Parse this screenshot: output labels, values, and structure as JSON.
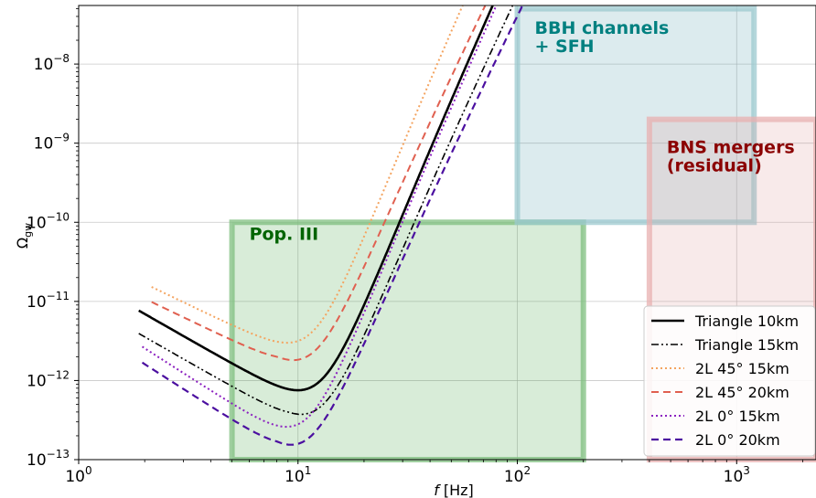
{
  "chart_data": {
    "type": "line",
    "title": "",
    "xlabel_symbol": "f",
    "xlabel_unit": "[Hz]",
    "ylabel_main": "Ω",
    "ylabel_sub": "gw",
    "xscale": "log",
    "yscale": "log",
    "xlim": [
      1,
      2300
    ],
    "ylim": [
      1e-13,
      5.5e-08
    ],
    "grid": true,
    "legend_placement": "lower-right",
    "x_ticks": [
      {
        "value": 1,
        "base": "10",
        "exp": "0"
      },
      {
        "value": 10,
        "base": "10",
        "exp": "1"
      },
      {
        "value": 100,
        "base": "10",
        "exp": "2"
      },
      {
        "value": 1000,
        "base": "10",
        "exp": "3"
      }
    ],
    "y_ticks": [
      {
        "value": 1e-13,
        "base": "10",
        "exp": "−13"
      },
      {
        "value": 1e-12,
        "base": "10",
        "exp": "−12"
      },
      {
        "value": 1e-11,
        "base": "10",
        "exp": "−11"
      },
      {
        "value": 1e-10,
        "base": "10",
        "exp": "−10"
      },
      {
        "value": 1e-09,
        "base": "10",
        "exp": "−9"
      },
      {
        "value": 1e-08,
        "base": "10",
        "exp": "−8"
      }
    ],
    "regions": [
      {
        "label_lines": [
          "Pop. III"
        ],
        "x0": 5,
        "x1": 200,
        "y0": 1e-13,
        "y1": 1e-10,
        "fill": "#4ea84e",
        "edge": "#7fbf7f",
        "text_color": "#006400",
        "label_x": 6,
        "label_y": 6e-11
      },
      {
        "label_lines": [
          "BBH channels",
          "+ SFH"
        ],
        "x0": 100,
        "x1": 1200,
        "y0": 1e-10,
        "y1": 5e-08,
        "fill": "#5fa3b0",
        "edge": "#9cc9cf",
        "text_color": "#008080",
        "label_x": 120,
        "label_y": 2.4e-08
      },
      {
        "label_lines": [
          "BNS mergers",
          "(residual)"
        ],
        "x0": 400,
        "x1": 2300,
        "y0": 1e-13,
        "y1": 2e-09,
        "fill": "#e0a0a0",
        "edge": "#e8b0b0",
        "text_color": "#8b0000",
        "label_x": 480,
        "label_y": 7.5e-10
      }
    ],
    "series": [
      {
        "name": "Triangle 10km",
        "color": "#000000",
        "dash": "",
        "width": 2.6,
        "xmin": 1.88,
        "xmax": 2300,
        "f0": 9,
        "omin": 7.8e-13,
        "a": 1.6,
        "b": 6,
        "tA": 0,
        "tB": 0
      },
      {
        "name": "Triangle 15km",
        "color": "#000000",
        "dash": "8,3,2,3,2,3",
        "width": 1.6,
        "xmin": 1.88,
        "xmax": 2300,
        "f0": 9,
        "omin": 4e-13,
        "a": 1.6,
        "b": 6,
        "tA": 0.45,
        "tB": 0
      },
      {
        "name": "2L 45° 15km",
        "color": "#f4a460",
        "dash": "2,3",
        "width": 2,
        "xmin": 2.15,
        "xmax": 2300,
        "f0": 8,
        "omin": 3.1e-12,
        "a": 1.35,
        "b": 6,
        "tA": 0,
        "tB": 0
      },
      {
        "name": "2L 45° 20km",
        "color": "#e06050",
        "dash": "8,5",
        "width": 2,
        "xmin": 2.15,
        "xmax": 2300,
        "f0": 8,
        "omin": 2e-12,
        "a": 1.35,
        "b": 6,
        "tA": 0.8,
        "tB": 0
      },
      {
        "name": "2L 0° 15km",
        "color": "#8b20c0",
        "dash": "2,3",
        "width": 2,
        "xmin": 1.95,
        "xmax": 2300,
        "f0": 8,
        "omin": 2.7e-13,
        "a": 1.8,
        "b": 6,
        "tA": 0,
        "tB": 0
      },
      {
        "name": "2L 0° 20km",
        "color": "#4b0fa0",
        "dash": "8,5",
        "width": 2.2,
        "xmin": 1.95,
        "xmax": 2300,
        "f0": 8,
        "omin": 1.7e-13,
        "a": 1.8,
        "b": 6,
        "tA": 0.8,
        "tB": 0
      }
    ]
  }
}
